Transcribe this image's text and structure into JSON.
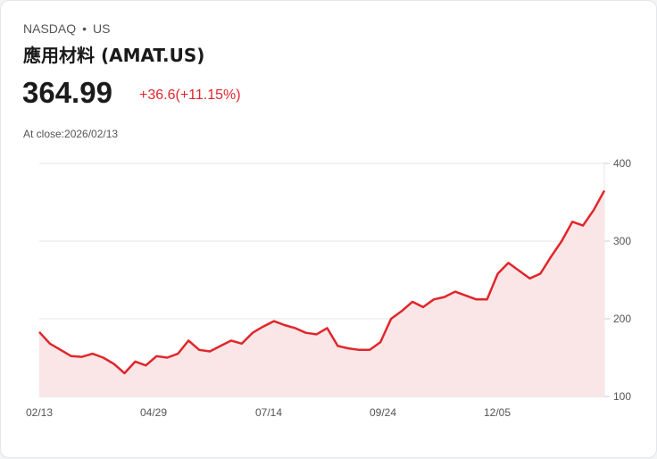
{
  "header": {
    "exchange": "NASDAQ",
    "separator": "•",
    "market": "US",
    "name": "應用材料 (AMAT.US)",
    "price": "364.99",
    "change": "+36.6(+11.15%)",
    "close_label": "At close:2026/02/13"
  },
  "colors": {
    "line": "#e0262b",
    "fill": "#fbe6e7",
    "grid": "#e4e4e4"
  },
  "chart_data": {
    "type": "area",
    "title": "",
    "xlabel": "",
    "ylabel": "",
    "ylim": [
      100,
      400
    ],
    "y_ticks": [
      "400",
      "300",
      "200",
      "100"
    ],
    "x_ticks": [
      "02/13",
      "04/29",
      "07/14",
      "09/24",
      "12/05"
    ],
    "grid": true,
    "legend": "none",
    "x": [
      "02/13",
      "02/20",
      "02/27",
      "03/06",
      "03/13",
      "03/20",
      "03/27",
      "04/03",
      "04/07",
      "04/10",
      "04/17",
      "04/24",
      "04/29",
      "05/06",
      "05/13",
      "05/20",
      "05/27",
      "06/03",
      "06/10",
      "06/17",
      "06/24",
      "07/01",
      "07/08",
      "07/14",
      "07/21",
      "07/28",
      "08/04",
      "08/11",
      "08/18",
      "08/25",
      "09/01",
      "09/08",
      "09/15",
      "09/24",
      "10/01",
      "10/08",
      "10/15",
      "10/22",
      "10/29",
      "11/05",
      "11/12",
      "11/19",
      "11/26",
      "12/05",
      "12/12",
      "12/19",
      "12/26",
      "01/02",
      "01/09",
      "01/16",
      "01/23",
      "01/30",
      "02/06",
      "02/13"
    ],
    "values": [
      183,
      168,
      160,
      152,
      151,
      155,
      150,
      142,
      130,
      145,
      140,
      152,
      150,
      155,
      172,
      160,
      158,
      165,
      172,
      168,
      182,
      190,
      197,
      192,
      188,
      182,
      180,
      188,
      165,
      162,
      160,
      160,
      170,
      200,
      210,
      222,
      215,
      225,
      228,
      235,
      230,
      225,
      225,
      258,
      272,
      262,
      252,
      258,
      280,
      300,
      325,
      320,
      340,
      365
    ]
  }
}
